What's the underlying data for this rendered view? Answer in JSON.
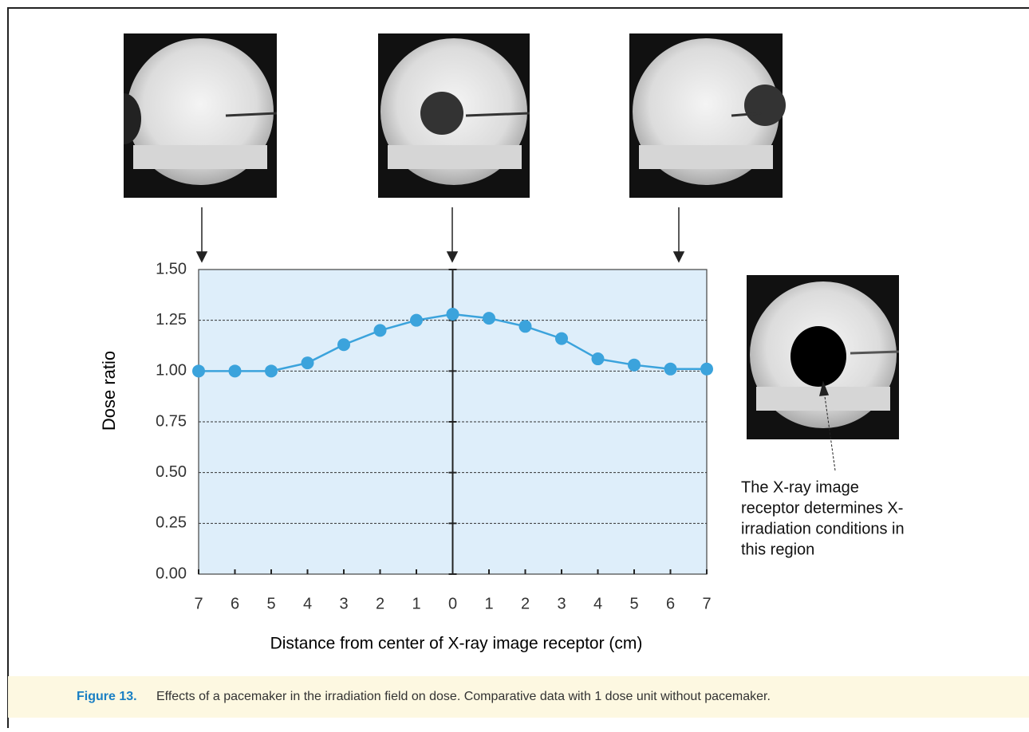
{
  "chart_data": {
    "type": "line",
    "y_label": "Dose ratio",
    "x_label": "Distance from center of X-ray image receptor (cm)",
    "categories": [
      "7",
      "6",
      "5",
      "4",
      "3",
      "2",
      "1",
      "0",
      "1",
      "2",
      "3",
      "4",
      "5",
      "6",
      "7"
    ],
    "values": [
      1.0,
      1.0,
      1.0,
      1.04,
      1.13,
      1.2,
      1.25,
      1.28,
      1.26,
      1.22,
      1.16,
      1.06,
      1.03,
      1.01,
      1.01
    ],
    "color": "#3ba3dc",
    "ylim": [
      0,
      1.5
    ],
    "yticks": [
      {
        "value": 0,
        "label": "0.00"
      },
      {
        "value": 0.25,
        "label": "0.25"
      },
      {
        "value": 0.5,
        "label": "0.50"
      },
      {
        "value": 0.75,
        "label": "0.75"
      },
      {
        "value": 1,
        "label": "1.00"
      },
      {
        "value": 1.25,
        "label": "1.25"
      },
      {
        "value": 1.5,
        "label": "1.50"
      }
    ],
    "grid": true,
    "annotation": [
      "The X-ray image",
      "receptor determines X-",
      "irradiation conditions in",
      "this region"
    ]
  },
  "caption": {
    "label": "Figure 13.",
    "text": "Effects of a pacemaker in the irradiation field on dose. Comparative data with 1 dose unit without pacemaker."
  }
}
